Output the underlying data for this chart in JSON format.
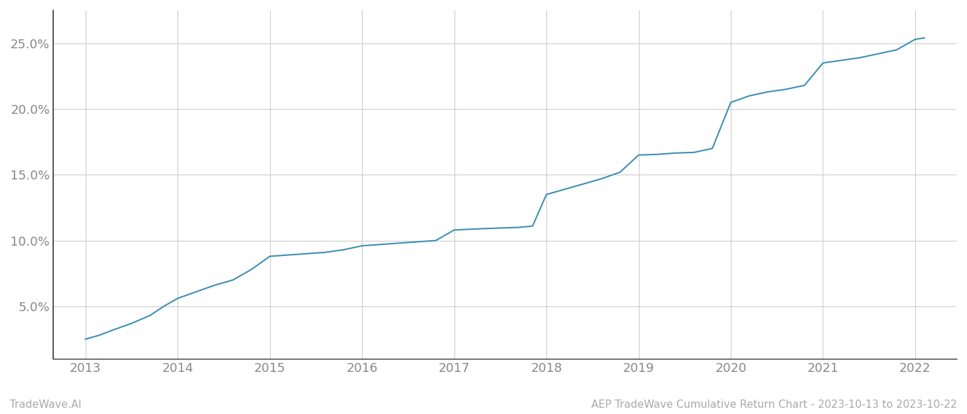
{
  "x_values": [
    2013.0,
    2013.15,
    2013.3,
    2013.5,
    2013.7,
    2013.85,
    2014.0,
    2014.2,
    2014.4,
    2014.6,
    2014.8,
    2015.0,
    2015.2,
    2015.4,
    2015.6,
    2015.8,
    2016.0,
    2016.2,
    2016.4,
    2016.6,
    2016.8,
    2017.0,
    2017.15,
    2017.3,
    2017.5,
    2017.7,
    2017.85,
    2018.0,
    2018.2,
    2018.4,
    2018.6,
    2018.8,
    2019.0,
    2019.2,
    2019.4,
    2019.6,
    2019.8,
    2020.0,
    2020.2,
    2020.4,
    2020.6,
    2020.8,
    2021.0,
    2021.2,
    2021.4,
    2021.6,
    2021.8,
    2022.0,
    2022.1
  ],
  "y_values": [
    2.5,
    2.8,
    3.2,
    3.7,
    4.3,
    5.0,
    5.6,
    6.1,
    6.6,
    7.0,
    7.8,
    8.8,
    8.9,
    9.0,
    9.1,
    9.3,
    9.6,
    9.7,
    9.8,
    9.9,
    10.0,
    10.8,
    10.85,
    10.9,
    10.95,
    11.0,
    11.1,
    13.5,
    13.9,
    14.3,
    14.7,
    15.2,
    16.5,
    16.55,
    16.65,
    16.7,
    17.0,
    20.5,
    21.0,
    21.3,
    21.5,
    21.8,
    23.5,
    23.7,
    23.9,
    24.2,
    24.5,
    25.3,
    25.4
  ],
  "line_color": "#3d8fb5",
  "line_width": 1.5,
  "grid_color": "#cccccc",
  "background_color": "#ffffff",
  "ytick_labels": [
    "5.0%",
    "10.0%",
    "15.0%",
    "20.0%",
    "25.0%"
  ],
  "ytick_values": [
    5,
    10,
    15,
    20,
    25
  ],
  "xtick_labels": [
    "2013",
    "2014",
    "2015",
    "2016",
    "2017",
    "2018",
    "2019",
    "2020",
    "2021",
    "2022"
  ],
  "xtick_values": [
    2013,
    2014,
    2015,
    2016,
    2017,
    2018,
    2019,
    2020,
    2021,
    2022
  ],
  "xlim": [
    2012.65,
    2022.45
  ],
  "ylim": [
    1.0,
    27.5
  ],
  "footer_left": "TradeWave.AI",
  "footer_right": "AEP TradeWave Cumulative Return Chart - 2023-10-13 to 2023-10-22",
  "footer_color": "#aaaaaa",
  "footer_fontsize": 11,
  "tick_color": "#888888",
  "tick_fontsize": 13,
  "spine_color": "#333333",
  "grid_linewidth": 0.8
}
